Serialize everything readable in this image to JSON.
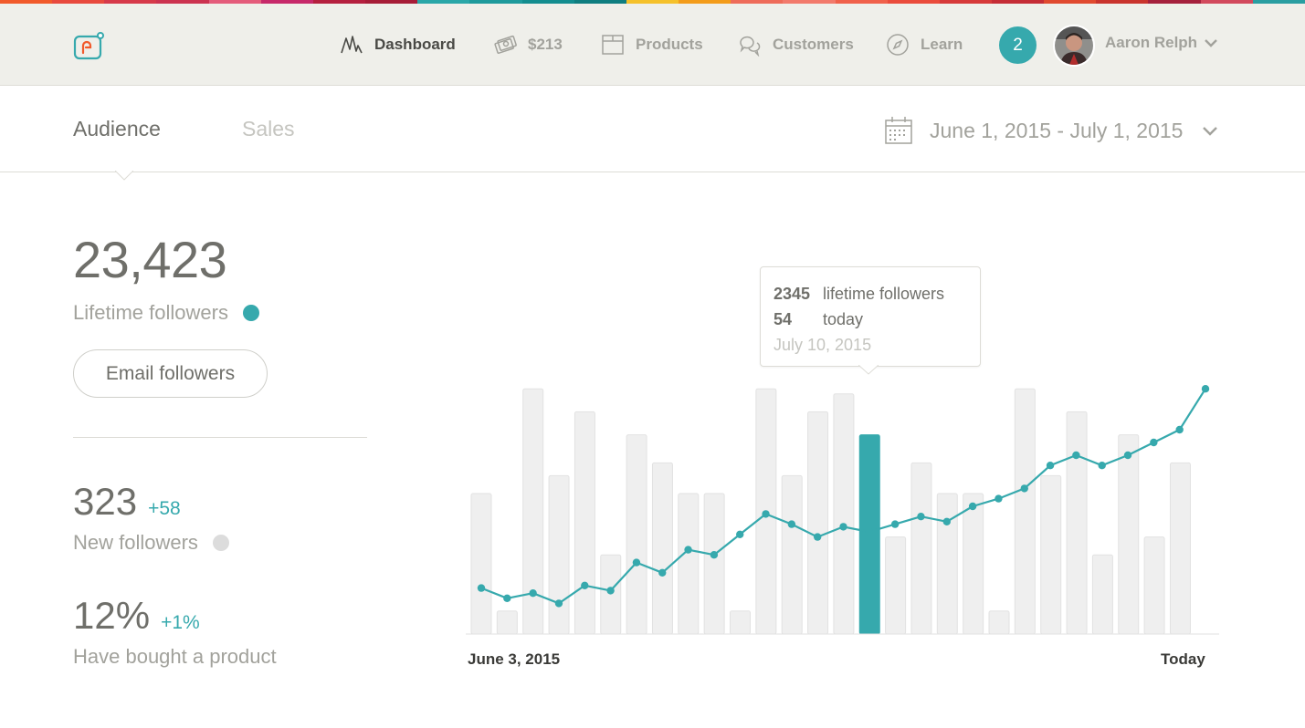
{
  "strip_colors": [
    "#f15a2b",
    "#e84a3e",
    "#d63a4a",
    "#cc3350",
    "#e45c7b",
    "#c7296a",
    "#b5203f",
    "#a71d38",
    "#2aa7a8",
    "#1e9a9c",
    "#138d8f",
    "#0f7e80",
    "#f5c12b",
    "#f39c1b",
    "#ee6c5a",
    "#f27a6c",
    "#f0614b",
    "#ea4c3c",
    "#d63a3a",
    "#c52d36",
    "#e04a2f",
    "#c9342d",
    "#a5213d",
    "#d24a5d",
    "#2a9ea1"
  ],
  "nav": {
    "items": [
      {
        "label": "Dashboard",
        "icon": "pulse-icon",
        "active": true
      },
      {
        "label": "$213",
        "icon": "money-icon",
        "active": false
      },
      {
        "label": "Products",
        "icon": "box-icon",
        "active": false
      },
      {
        "label": "Customers",
        "icon": "chat-bubbles-icon",
        "active": false
      },
      {
        "label": "Learn",
        "icon": "compass-icon",
        "active": false
      }
    ],
    "notification_count": "2",
    "user_name": "Aaron Relph"
  },
  "tabs": {
    "audience": "Audience",
    "sales": "Sales"
  },
  "date_range": "June 1, 2015 - July 1, 2015",
  "stats": {
    "lifetime_followers": "23,423",
    "lifetime_label": "Lifetime followers",
    "email_button": "Email followers",
    "new_followers": "323",
    "new_followers_delta": "+58",
    "new_followers_label": "New followers",
    "bought_pct": "12%",
    "bought_delta": "+1%",
    "bought_label": "Have bought a product"
  },
  "colors": {
    "accent": "#36a9ad",
    "bar": "#efefef",
    "bar_border": "#e2e2e2",
    "dot_gray": "#dcdcdc"
  },
  "tooltip": {
    "lifetime_value": "2345",
    "lifetime_label": "lifetime followers",
    "today_value": "54",
    "today_label": "today",
    "date": "July 10, 2015"
  },
  "chart_data": {
    "type": "bar",
    "x_start_label": "June 3, 2015",
    "x_end_label": "Today",
    "bar_values": [
      55,
      9,
      96,
      62,
      87,
      31,
      78,
      67,
      55,
      55,
      9,
      96,
      62,
      87,
      94,
      78,
      38,
      67,
      55,
      55,
      9,
      96,
      62,
      87,
      31,
      78,
      38,
      67
    ],
    "highlight_index": 15,
    "line_values": [
      18,
      14,
      16,
      12,
      19,
      17,
      28,
      24,
      33,
      31,
      39,
      47,
      43,
      38,
      42,
      40,
      43,
      46,
      44,
      50,
      53,
      57,
      66,
      70,
      66,
      70,
      75,
      80,
      96
    ]
  }
}
